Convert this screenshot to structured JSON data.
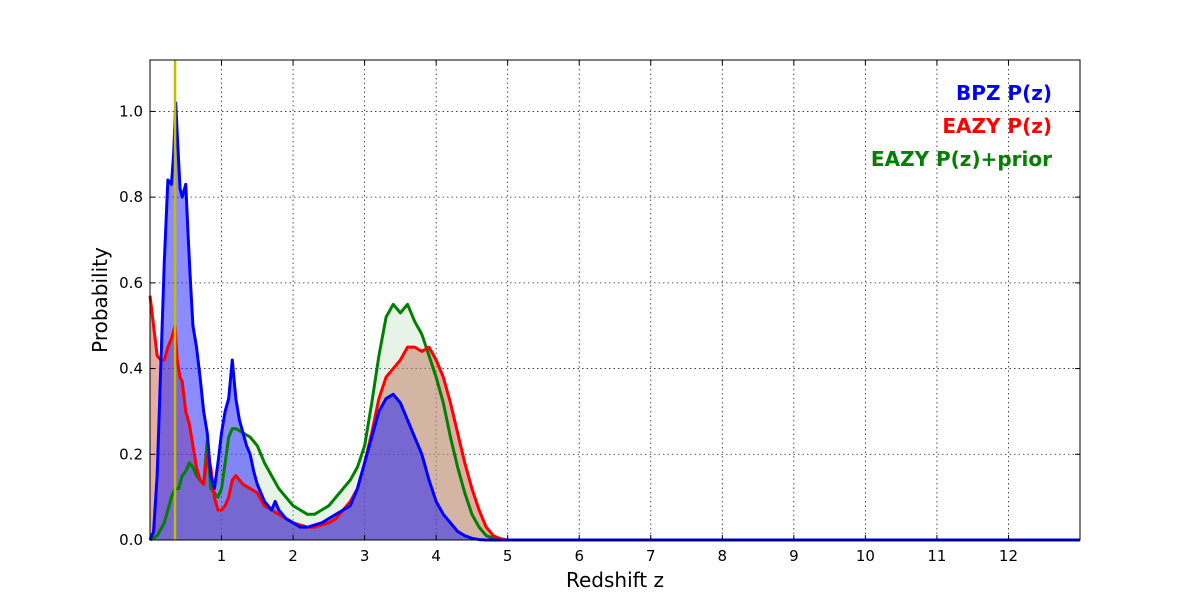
{
  "chart_data": {
    "type": "area",
    "xlabel": "Redshift z",
    "ylabel": "Probability",
    "xlim": [
      0,
      13
    ],
    "ylim": [
      0,
      1.12
    ],
    "xticks": [
      1,
      2,
      3,
      4,
      5,
      6,
      7,
      8,
      9,
      10,
      11,
      12
    ],
    "yticks": [
      0.0,
      0.2,
      0.4,
      0.6,
      0.8,
      1.0
    ],
    "xtick_labels": [
      "1",
      "2",
      "3",
      "4",
      "5",
      "6",
      "7",
      "8",
      "9",
      "10",
      "11",
      "12"
    ],
    "ytick_labels": [
      "0.0",
      "0.2",
      "0.4",
      "0.6",
      "0.8",
      "1.0"
    ],
    "grid": true,
    "legend_position": "top-right",
    "vertical_line": {
      "x": 0.35,
      "color": "#bfbf00"
    },
    "series": [
      {
        "name": "BPZ P(z)",
        "color": "#0000ff",
        "x": [
          0,
          0.05,
          0.1,
          0.15,
          0.2,
          0.25,
          0.3,
          0.33,
          0.36,
          0.38,
          0.42,
          0.45,
          0.5,
          0.53,
          0.56,
          0.6,
          0.65,
          0.7,
          0.75,
          0.8,
          0.85,
          0.9,
          0.95,
          1.0,
          1.05,
          1.1,
          1.15,
          1.2,
          1.25,
          1.3,
          1.35,
          1.4,
          1.45,
          1.5,
          1.6,
          1.7,
          1.75,
          1.8,
          1.85,
          1.9,
          2.0,
          2.1,
          2.2,
          2.3,
          2.4,
          2.5,
          2.6,
          2.7,
          2.8,
          2.9,
          3.0,
          3.1,
          3.2,
          3.3,
          3.4,
          3.5,
          3.55,
          3.6,
          3.7,
          3.8,
          3.9,
          4.0,
          4.1,
          4.2,
          4.3,
          4.4,
          4.5,
          4.6,
          4.7,
          4.8,
          5.0,
          6.0,
          8.0,
          10.0,
          12.0,
          13.0
        ],
        "values": [
          0.0,
          0.02,
          0.15,
          0.4,
          0.65,
          0.84,
          0.83,
          0.9,
          1.02,
          0.95,
          0.82,
          0.8,
          0.83,
          0.72,
          0.62,
          0.5,
          0.45,
          0.38,
          0.3,
          0.25,
          0.15,
          0.12,
          0.18,
          0.25,
          0.3,
          0.33,
          0.42,
          0.33,
          0.28,
          0.25,
          0.22,
          0.2,
          0.16,
          0.13,
          0.09,
          0.07,
          0.09,
          0.07,
          0.06,
          0.05,
          0.04,
          0.03,
          0.03,
          0.035,
          0.04,
          0.05,
          0.06,
          0.07,
          0.08,
          0.12,
          0.18,
          0.24,
          0.3,
          0.33,
          0.34,
          0.32,
          0.3,
          0.28,
          0.24,
          0.2,
          0.14,
          0.09,
          0.06,
          0.04,
          0.02,
          0.01,
          0.004,
          0.001,
          0.0,
          0.0,
          0.0,
          0.0,
          0.0,
          0.0,
          0.0,
          0.0
        ]
      },
      {
        "name": "EAZY P(z)",
        "color": "#ff0000",
        "x": [
          0,
          0.05,
          0.1,
          0.15,
          0.2,
          0.25,
          0.3,
          0.35,
          0.38,
          0.42,
          0.45,
          0.5,
          0.55,
          0.6,
          0.65,
          0.7,
          0.75,
          0.8,
          0.85,
          0.9,
          0.95,
          1.0,
          1.05,
          1.1,
          1.15,
          1.2,
          1.3,
          1.4,
          1.5,
          1.6,
          1.7,
          1.8,
          1.9,
          2.0,
          2.1,
          2.2,
          2.3,
          2.4,
          2.5,
          2.6,
          2.7,
          2.8,
          2.9,
          3.0,
          3.1,
          3.2,
          3.3,
          3.4,
          3.5,
          3.6,
          3.7,
          3.8,
          3.9,
          4.0,
          4.1,
          4.2,
          4.3,
          4.4,
          4.5,
          4.6,
          4.7,
          4.8,
          4.9,
          5.0,
          6.0,
          8.0,
          10.0,
          12.0,
          13.0
        ],
        "values": [
          0.57,
          0.5,
          0.43,
          0.42,
          0.42,
          0.45,
          0.47,
          0.5,
          0.42,
          0.38,
          0.37,
          0.3,
          0.27,
          0.22,
          0.17,
          0.14,
          0.13,
          0.2,
          0.17,
          0.1,
          0.07,
          0.07,
          0.08,
          0.1,
          0.14,
          0.15,
          0.13,
          0.12,
          0.11,
          0.08,
          0.07,
          0.06,
          0.05,
          0.04,
          0.035,
          0.03,
          0.03,
          0.035,
          0.04,
          0.05,
          0.07,
          0.09,
          0.12,
          0.18,
          0.25,
          0.33,
          0.38,
          0.4,
          0.42,
          0.45,
          0.45,
          0.44,
          0.45,
          0.42,
          0.38,
          0.32,
          0.25,
          0.18,
          0.12,
          0.07,
          0.03,
          0.01,
          0.003,
          0.0,
          0.0,
          0.0,
          0.0,
          0.0,
          0.0
        ]
      },
      {
        "name": "EAZY P(z)+prior",
        "color": "#008000",
        "x": [
          0,
          0.1,
          0.2,
          0.25,
          0.3,
          0.35,
          0.4,
          0.45,
          0.5,
          0.55,
          0.6,
          0.65,
          0.7,
          0.75,
          0.8,
          0.85,
          0.9,
          0.95,
          1.0,
          1.05,
          1.1,
          1.15,
          1.2,
          1.3,
          1.4,
          1.5,
          1.6,
          1.7,
          1.8,
          1.9,
          2.0,
          2.1,
          2.2,
          2.3,
          2.4,
          2.5,
          2.6,
          2.7,
          2.8,
          2.9,
          3.0,
          3.1,
          3.2,
          3.3,
          3.4,
          3.5,
          3.6,
          3.7,
          3.8,
          3.9,
          4.0,
          4.1,
          4.2,
          4.3,
          4.4,
          4.5,
          4.6,
          4.7,
          4.8,
          4.9,
          5.0,
          6.0,
          8.0,
          10.0,
          12.0,
          13.0
        ],
        "values": [
          0.0,
          0.01,
          0.04,
          0.07,
          0.1,
          0.12,
          0.12,
          0.15,
          0.16,
          0.18,
          0.17,
          0.15,
          0.14,
          0.13,
          0.23,
          0.12,
          0.11,
          0.1,
          0.12,
          0.18,
          0.24,
          0.26,
          0.26,
          0.25,
          0.24,
          0.22,
          0.18,
          0.15,
          0.12,
          0.1,
          0.08,
          0.07,
          0.06,
          0.06,
          0.07,
          0.08,
          0.1,
          0.12,
          0.14,
          0.17,
          0.22,
          0.32,
          0.43,
          0.52,
          0.55,
          0.53,
          0.55,
          0.51,
          0.48,
          0.43,
          0.38,
          0.32,
          0.24,
          0.17,
          0.11,
          0.06,
          0.03,
          0.01,
          0.004,
          0.001,
          0.0,
          0.0,
          0.0,
          0.0,
          0.0,
          0.0
        ]
      }
    ],
    "fills": [
      {
        "series": "EAZY P(z)",
        "color": "#cd5c4a",
        "opacity": 0.5
      },
      {
        "series": "EAZY P(z)+prior",
        "color": "#9fd09f",
        "opacity": 0.25
      },
      {
        "series": "BPZ P(z)",
        "color": "#1a1aff",
        "opacity": 0.5
      }
    ]
  }
}
